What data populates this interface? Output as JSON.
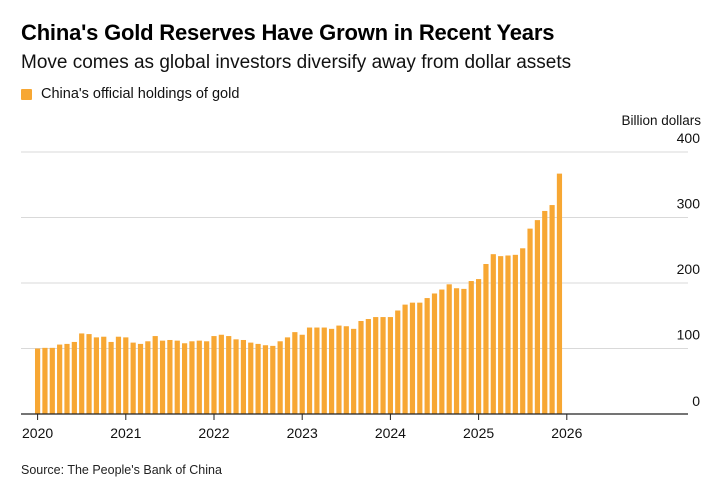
{
  "title": "China's Gold Reserves Have Grown in Recent Years",
  "subtitle": "Move comes as global investors diversify away from dollar assets",
  "legend": {
    "label": "China's official holdings of gold",
    "color": "#F7A733"
  },
  "source": "Source: The People's Bank of China",
  "colors": {
    "bar": "#F7A733",
    "grid": "#d9d9d9",
    "axis": "#222222"
  },
  "chart_data": {
    "type": "bar",
    "title": "China's Gold Reserves Have Grown in Recent Years",
    "ylabel": "Billion dollars",
    "ylim": [
      0,
      400
    ],
    "yticks": [
      0,
      100,
      200,
      300,
      400
    ],
    "yaxis_position": "right",
    "xtick_labels": [
      "2020",
      "2021",
      "2022",
      "2023",
      "2024",
      "2025",
      "2026"
    ],
    "series": [
      {
        "name": "China's official holdings of gold",
        "start": "2020-01",
        "frequency": "monthly",
        "values": [
          100,
          101,
          101,
          106,
          107,
          110,
          123,
          122,
          117,
          118,
          110,
          118,
          117,
          109,
          107,
          111,
          119,
          112,
          113,
          112,
          108,
          111,
          112,
          111,
          119,
          121,
          119,
          114,
          113,
          109,
          107,
          105,
          104,
          111,
          117,
          125,
          121,
          132,
          132,
          132,
          130,
          135,
          134,
          130,
          142,
          145,
          148,
          148,
          148,
          158,
          167,
          170,
          170,
          177,
          184,
          190,
          198,
          192,
          191,
          203,
          206,
          229,
          244,
          241,
          242,
          243,
          253,
          283,
          296,
          310,
          319,
          367
        ]
      }
    ]
  }
}
